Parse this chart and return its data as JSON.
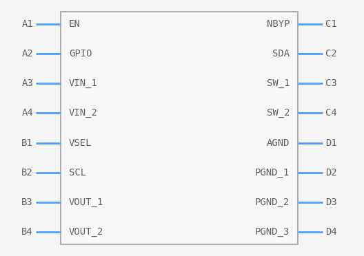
{
  "bg_color": "#f5f5f5",
  "box_color": "#b0b0b0",
  "box_fill": "#f8f8f8",
  "pin_color": "#4d9fff",
  "text_color": "#606060",
  "label_color": "#606060",
  "left_pins": [
    {
      "name": "A1",
      "label": "EN"
    },
    {
      "name": "A2",
      "label": "GPIO"
    },
    {
      "name": "A3",
      "label": "VIN_1"
    },
    {
      "name": "A4",
      "label": "VIN_2"
    },
    {
      "name": "B1",
      "label": "VSEL"
    },
    {
      "name": "B2",
      "label": "SCL"
    },
    {
      "name": "B3",
      "label": "VOUT_1"
    },
    {
      "name": "B4",
      "label": "VOUT_2"
    }
  ],
  "right_pins": [
    {
      "name": "C1",
      "label": "NBYP"
    },
    {
      "name": "C2",
      "label": "SDA"
    },
    {
      "name": "C3",
      "label": "SW_1"
    },
    {
      "name": "C4",
      "label": "SW_2"
    },
    {
      "name": "D1",
      "label": "AGND"
    },
    {
      "name": "D2",
      "label": "PGND_1"
    },
    {
      "name": "D3",
      "label": "PGND_2"
    },
    {
      "name": "D4",
      "label": "PGND_3"
    }
  ],
  "font_size_label": 10,
  "font_size_pin": 10,
  "pin_lw": 2.0
}
